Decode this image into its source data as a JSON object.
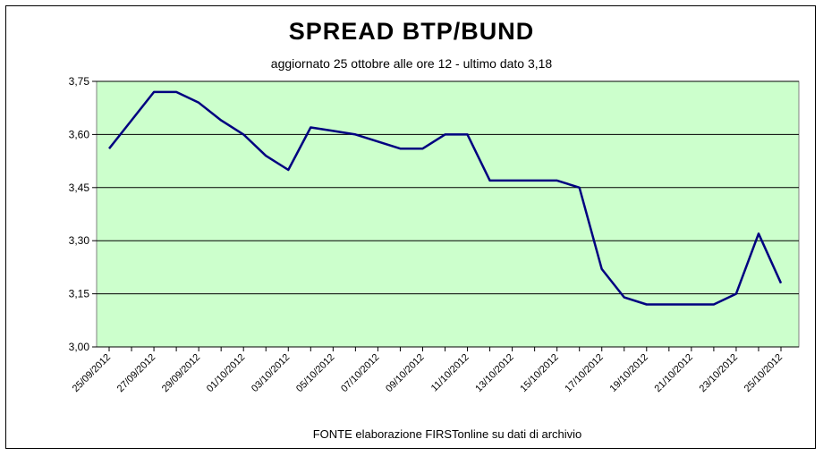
{
  "chart_data": {
    "type": "line",
    "title": "SPREAD  BTP/BUND",
    "subtitle": "aggiornato 25 ottobre alle ore 12 - ultimo dato 3,18",
    "source": "FONTE elaborazione FIRSTonline su dati di archivio",
    "xlabel": "",
    "ylabel": "",
    "ylim": [
      3.0,
      3.75
    ],
    "yticks": [
      "3,00",
      "3,15",
      "3,30",
      "3,45",
      "3,60",
      "3,75"
    ],
    "ytick_values": [
      3.0,
      3.15,
      3.3,
      3.45,
      3.6,
      3.75
    ],
    "xtick_labels": [
      "25/09/2012",
      "27/09/2012",
      "29/09/2012",
      "01/10/2012",
      "03/10/2012",
      "05/10/2012",
      "07/10/2012",
      "09/10/2012",
      "11/10/2012",
      "13/10/2012",
      "15/10/2012",
      "17/10/2012",
      "19/10/2012",
      "21/10/2012",
      "23/10/2012",
      "25/10/2012"
    ],
    "x": [
      "25/09/2012",
      "26/09/2012",
      "27/09/2012",
      "28/09/2012",
      "29/09/2012",
      "30/09/2012",
      "01/10/2012",
      "02/10/2012",
      "03/10/2012",
      "04/10/2012",
      "05/10/2012",
      "06/10/2012",
      "07/10/2012",
      "08/10/2012",
      "09/10/2012",
      "10/10/2012",
      "11/10/2012",
      "12/10/2012",
      "13/10/2012",
      "14/10/2012",
      "15/10/2012",
      "16/10/2012",
      "17/10/2012",
      "18/10/2012",
      "19/10/2012",
      "20/10/2012",
      "21/10/2012",
      "22/10/2012",
      "23/10/2012",
      "24/10/2012",
      "25/10/2012"
    ],
    "series": [
      {
        "values": [
          3.56,
          3.64,
          3.72,
          3.72,
          3.69,
          3.64,
          3.6,
          3.54,
          3.5,
          3.62,
          3.61,
          3.6,
          3.58,
          3.56,
          3.56,
          3.6,
          3.6,
          3.47,
          3.47,
          3.47,
          3.47,
          3.45,
          3.22,
          3.14,
          3.12,
          3.12,
          3.12,
          3.12,
          3.15,
          3.32,
          3.18
        ]
      }
    ],
    "grid": true,
    "plot_background": "#ccffcc",
    "line_color": "#000080",
    "legend": "none"
  }
}
